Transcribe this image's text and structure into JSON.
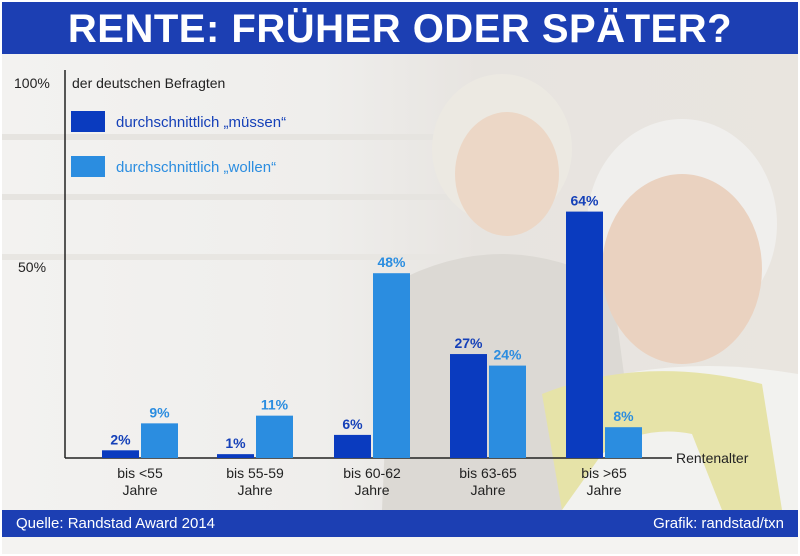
{
  "title": "RENTE: FRÜHER ODER SPÄTER?",
  "source": "Quelle: Randstad Award 2014",
  "credit": "Grafik: randstad/txn",
  "colors": {
    "header_blue": "#1c3fb3",
    "muessen": "#0a3bbf",
    "wollen": "#2b8de0",
    "label_muessen": "#1540b8",
    "label_wollen": "#2b8de0"
  },
  "chart_data": {
    "type": "bar",
    "ylabel_top": "100%",
    "ylabel_mid": "50%",
    "ylabel_desc": "der deutschen Befragten",
    "xlabel": "Rentenalter",
    "ylim": [
      0,
      100
    ],
    "categories": [
      [
        "bis <55",
        "Jahre"
      ],
      [
        "bis 55-59",
        "Jahre"
      ],
      [
        "bis 60-62",
        "Jahre"
      ],
      [
        "bis 63-65",
        "Jahre"
      ],
      [
        "bis >65",
        "Jahre"
      ]
    ],
    "series": [
      {
        "name": "durchschnittlich „müssen“",
        "values": [
          2,
          1,
          6,
          27,
          64
        ],
        "labels": [
          "2%",
          "1%",
          "6%",
          "27%",
          "64%"
        ]
      },
      {
        "name": "durchschnittlich „wollen“",
        "values": [
          9,
          11,
          48,
          24,
          8
        ],
        "labels": [
          "9%",
          "11%",
          "48%",
          "24%",
          "8%"
        ]
      }
    ]
  }
}
